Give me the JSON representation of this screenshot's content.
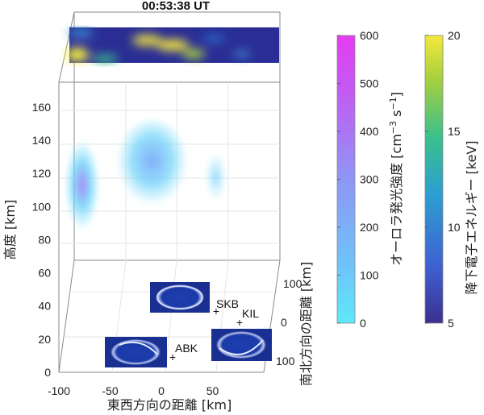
{
  "chart_data": {
    "type": "3d-volume-rendering",
    "title": "00:53:38 UT",
    "axes": {
      "x": {
        "label": "東西方向の距離 [km]",
        "lim": [
          -100,
          100
        ],
        "ticks": [
          -100,
          -50,
          0,
          50
        ]
      },
      "y": {
        "label": "南北方向の距離 [km]",
        "lim": [
          -100,
          100
        ],
        "ticks": [
          100,
          0,
          100
        ]
      },
      "z": {
        "label": "高度 [km]",
        "lim": [
          0,
          175
        ],
        "ticks": [
          0,
          20,
          40,
          60,
          80,
          100,
          120,
          140,
          160
        ]
      }
    },
    "colorbars": [
      {
        "name": "auroral-emission",
        "label": "オーロラ発光強度",
        "unit_base": "[cm",
        "unit_exp1": "−3",
        "unit_mid": " s",
        "unit_exp2": "−1",
        "unit_end": "]",
        "range": [
          0,
          600
        ],
        "ticks": [
          0,
          100,
          200,
          300,
          400,
          500,
          600
        ],
        "color_low": "#5ee8f8",
        "color_high": "#e43cf0"
      },
      {
        "name": "electron-energy",
        "label": "降下電子エネルギー [keV]",
        "range": [
          5,
          20
        ],
        "ticks": [
          5,
          10,
          15,
          20
        ],
        "colors": [
          "#3b2f8f",
          "#3f62d2",
          "#2c9fd0",
          "#3cc08a",
          "#a7d03d",
          "#f4e93c"
        ]
      }
    ],
    "stations": [
      {
        "name": "SKB",
        "x": 48,
        "y": 60
      },
      {
        "name": "KIL",
        "x": 65,
        "y": 20
      },
      {
        "name": "ABK",
        "x": 5,
        "y": -90
      }
    ],
    "emission_blobs": [
      {
        "x": -90,
        "y": 0,
        "z_center": 113,
        "z_extent": [
          95,
          150
        ],
        "peak": 450
      },
      {
        "x": -20,
        "y": 15,
        "z_center": 125,
        "z_extent": [
          100,
          155
        ],
        "peak": 180
      },
      {
        "x": 50,
        "y": 10,
        "z_center": 118,
        "z_extent": [
          105,
          135
        ],
        "peak": 110
      }
    ],
    "grid": true,
    "legend": "none"
  }
}
